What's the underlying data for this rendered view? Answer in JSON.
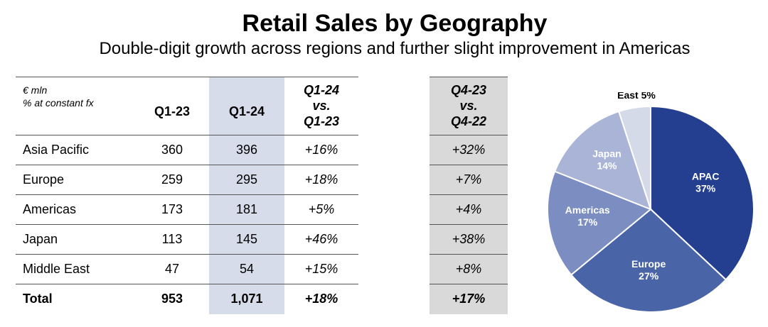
{
  "title": "Retail Sales by Geography",
  "subtitle": "Double-digit growth across regions and further slight improvement in Americas",
  "table": {
    "note_line1": "€ mln",
    "note_line2": "% at constant fx",
    "headers": {
      "q123": "Q1-23",
      "q124": "Q1-24",
      "yoy_line1": "Q1-24",
      "yoy_line2": "vs.",
      "yoy_line3": "Q1-23",
      "q4_line1": "Q4-23",
      "q4_line2": "vs.",
      "q4_line3": "Q4-22"
    },
    "rows": [
      {
        "region": "Asia Pacific",
        "q123": "360",
        "q124": "396",
        "yoy": "+16%",
        "q4": "+32%"
      },
      {
        "region": "Europe",
        "q123": "259",
        "q124": "295",
        "yoy": "+18%",
        "q4": "+7%"
      },
      {
        "region": "Americas",
        "q123": "173",
        "q124": "181",
        "yoy": "+5%",
        "q4": "+4%"
      },
      {
        "region": "Japan",
        "q123": "113",
        "q124": "145",
        "yoy": "+46%",
        "q4": "+38%"
      },
      {
        "region": "Middle East",
        "q123": "47",
        "q124": "54",
        "yoy": "+15%",
        "q4": "+8%"
      }
    ],
    "total": {
      "region": "Total",
      "q123": "953",
      "q124": "1,071",
      "yoy": "+18%",
      "q4": "+17%"
    }
  },
  "chart_data": {
    "type": "pie",
    "slices": [
      {
        "name": "APAC",
        "label": "37%",
        "value": 37,
        "color": "#243f8f"
      },
      {
        "name": "Europe",
        "label": "27%",
        "value": 27,
        "color": "#4a64a8"
      },
      {
        "name": "Americas",
        "label": "17%",
        "value": 17,
        "color": "#7b8dc1"
      },
      {
        "name": "Japan",
        "label": "14%",
        "value": 14,
        "color": "#a9b4d6"
      },
      {
        "name": "Middle East",
        "label": "5%",
        "value": 5,
        "color": "#d5dae9"
      }
    ]
  },
  "colors": {
    "highlight_column": "#d7dceb",
    "q4_column": "#d9d9d9",
    "rule": "#555555"
  }
}
